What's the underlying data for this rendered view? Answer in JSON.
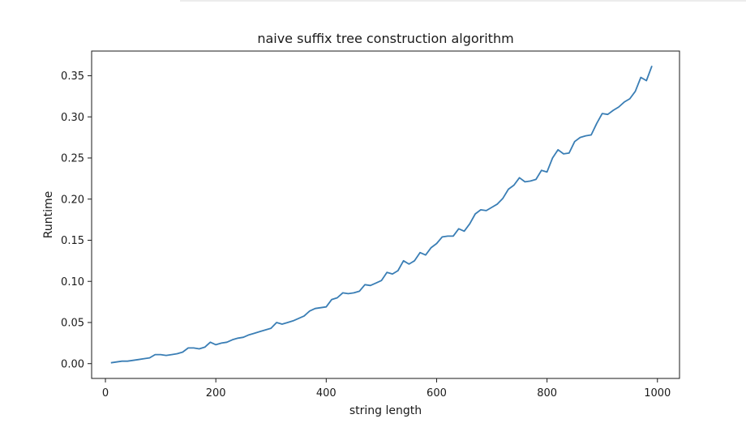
{
  "chart_data": {
    "type": "line",
    "title": "naive suffix tree construction algorithm",
    "xlabel": "string length",
    "ylabel": "Runtime",
    "xlim": [
      -25,
      1040
    ],
    "ylim": [
      -0.018,
      0.38
    ],
    "xticks": [
      0,
      200,
      400,
      600,
      800,
      1000
    ],
    "xtick_labels": [
      "0",
      "200",
      "400",
      "600",
      "800",
      "1000"
    ],
    "yticks": [
      0.0,
      0.05,
      0.1,
      0.15,
      0.2,
      0.25,
      0.3,
      0.35
    ],
    "ytick_labels": [
      "0.00",
      "0.05",
      "0.10",
      "0.15",
      "0.20",
      "0.25",
      "0.30",
      "0.35"
    ],
    "grid": false,
    "colors": {
      "line": "#3a7eb5",
      "axes": "#1a1a1a"
    },
    "series": [
      {
        "x": [
          10,
          20,
          30,
          40,
          50,
          60,
          70,
          80,
          90,
          100,
          110,
          120,
          130,
          140,
          150,
          160,
          170,
          180,
          190,
          200,
          210,
          220,
          230,
          240,
          250,
          260,
          270,
          280,
          290,
          300,
          310,
          320,
          330,
          340,
          350,
          360,
          370,
          380,
          390,
          400,
          410,
          420,
          430,
          440,
          450,
          460,
          470,
          480,
          490,
          500,
          510,
          520,
          530,
          540,
          550,
          560,
          570,
          580,
          590,
          600,
          610,
          620,
          630,
          640,
          650,
          660,
          670,
          680,
          690,
          700,
          710,
          720,
          730,
          740,
          750,
          760,
          770,
          780,
          790,
          800,
          810,
          820,
          830,
          840,
          850,
          860,
          870,
          880,
          890,
          900,
          910,
          920,
          930,
          940,
          950,
          960,
          970,
          980,
          990
        ],
        "y": [
          0.001,
          0.002,
          0.003,
          0.003,
          0.004,
          0.005,
          0.006,
          0.007,
          0.011,
          0.011,
          0.01,
          0.011,
          0.012,
          0.014,
          0.019,
          0.019,
          0.018,
          0.02,
          0.026,
          0.023,
          0.025,
          0.026,
          0.029,
          0.031,
          0.032,
          0.035,
          0.037,
          0.039,
          0.041,
          0.043,
          0.05,
          0.048,
          0.05,
          0.052,
          0.055,
          0.058,
          0.064,
          0.067,
          0.068,
          0.069,
          0.078,
          0.08,
          0.086,
          0.085,
          0.086,
          0.088,
          0.096,
          0.095,
          0.098,
          0.101,
          0.111,
          0.109,
          0.113,
          0.125,
          0.121,
          0.125,
          0.135,
          0.132,
          0.141,
          0.146,
          0.154,
          0.155,
          0.155,
          0.164,
          0.161,
          0.17,
          0.182,
          0.187,
          0.186,
          0.19,
          0.194,
          0.201,
          0.212,
          0.217,
          0.226,
          0.221,
          0.222,
          0.224,
          0.235,
          0.233,
          0.25,
          0.26,
          0.255,
          0.256,
          0.27,
          0.275,
          0.277,
          0.278,
          0.292,
          0.304,
          0.303,
          0.308,
          0.312,
          0.318,
          0.322,
          0.331,
          0.348,
          0.344,
          0.362
        ]
      }
    ]
  }
}
